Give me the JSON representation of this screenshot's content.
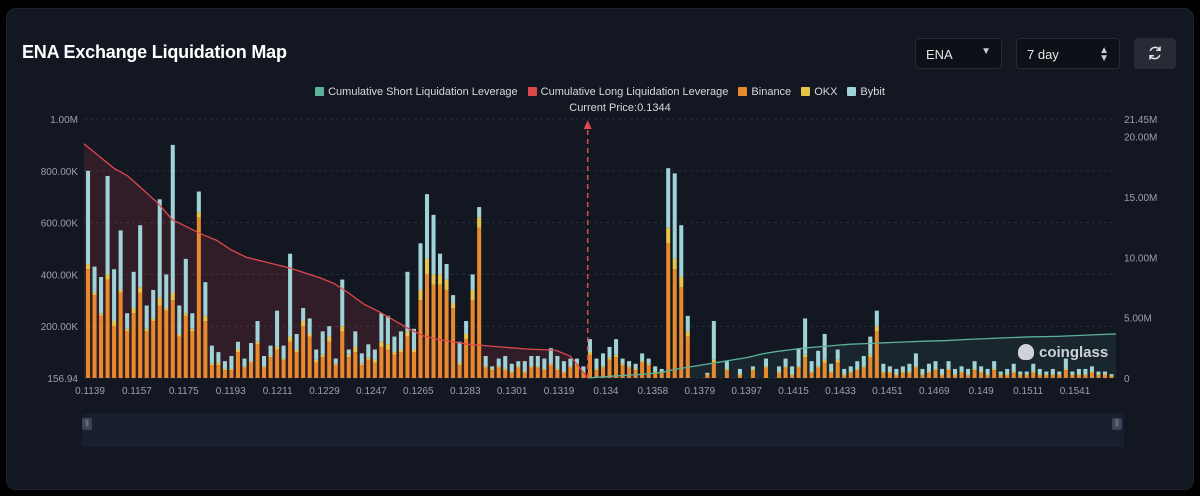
{
  "header": {
    "title": "ENA Exchange Liquidation Map",
    "coin_select": "ENA",
    "period_select": "7 day"
  },
  "colors": {
    "short_cum": "#5bb39a",
    "long_cum": "#e0474c",
    "binance": "#e8892c",
    "okx": "#e9c44a",
    "bybit": "#9fd3d8"
  },
  "chart_data": {
    "type": "bar",
    "legend": [
      {
        "name": "Cumulative Short Liquidation Leverage",
        "color": "#5bb39a"
      },
      {
        "name": "Cumulative Long Liquidation Leverage",
        "color": "#e0474c"
      },
      {
        "name": "Binance",
        "color": "#e8892c"
      },
      {
        "name": "OKX",
        "color": "#e9c44a"
      },
      {
        "name": "Bybit",
        "color": "#9fd3d8"
      }
    ],
    "current_price_label": "Current Price:0.1344",
    "current_price": 0.1344,
    "x_start": 0.1139,
    "x_step": 0.0003,
    "x_tick_labels": [
      "0.1139",
      "0.1157",
      "0.1175",
      "0.1193",
      "0.1211",
      "0.1229",
      "0.1247",
      "0.1265",
      "0.1283",
      "0.1301",
      "0.1319",
      "0.134",
      "0.1358",
      "0.1379",
      "0.1397",
      "0.1415",
      "0.1433",
      "0.1451",
      "0.1469",
      "0.149",
      "0.1511",
      "0.1541"
    ],
    "y_left_ticks": [
      "156.94",
      "200.00K",
      "400.00K",
      "600.00K",
      "800.00K",
      "1.00M"
    ],
    "y_left_max": 1000000,
    "y_right_ticks": [
      "0",
      "5.00M",
      "10.00M",
      "15.00M",
      "20.00M",
      "21.45M"
    ],
    "y_right_max": 21450000,
    "series": [
      {
        "name": "Binance",
        "values": [
          420000,
          320000,
          240000,
          380000,
          200000,
          330000,
          180000,
          250000,
          330000,
          180000,
          220000,
          280000,
          260000,
          300000,
          160000,
          240000,
          180000,
          620000,
          220000,
          50000,
          50000,
          30000,
          30000,
          100000,
          40000,
          60000,
          130000,
          40000,
          80000,
          110000,
          70000,
          140000,
          100000,
          200000,
          160000,
          60000,
          80000,
          140000,
          50000,
          180000,
          80000,
          100000,
          50000,
          70000,
          60000,
          120000,
          110000,
          90000,
          100000,
          160000,
          100000,
          300000,
          400000,
          360000,
          360000,
          340000,
          270000,
          50000,
          150000,
          300000,
          580000,
          40000,
          30000,
          40000,
          30000,
          20000,
          40000,
          20000,
          40000,
          40000,
          30000,
          50000,
          30000,
          20000,
          40000,
          50000,
          20000,
          90000,
          30000,
          40000,
          70000,
          80000,
          50000,
          40000,
          30000,
          60000,
          50000,
          20000,
          20000,
          520000,
          420000,
          350000,
          160000,
          0,
          0,
          10000,
          60000,
          0,
          30000,
          0,
          10000,
          0,
          30000,
          0,
          40000,
          0,
          20000,
          40000,
          10000,
          40000,
          80000,
          20000,
          40000,
          60000,
          20000,
          60000,
          10000,
          20000,
          30000,
          40000,
          80000,
          180000,
          20000,
          20000,
          10000,
          20000,
          20000,
          40000,
          10000,
          20000,
          30000,
          10000,
          30000,
          10000,
          20000,
          10000,
          30000,
          20000,
          10000,
          30000,
          10000,
          10000,
          20000,
          10000,
          10000,
          20000,
          10000,
          10000,
          10000,
          10000,
          30000,
          10000,
          10000,
          10000,
          20000,
          10000,
          10000,
          5000
        ]
      },
      {
        "name": "OKX",
        "values": [
          20000,
          10000,
          10000,
          20000,
          20000,
          10000,
          10000,
          20000,
          20000,
          10000,
          10000,
          30000,
          10000,
          30000,
          10000,
          10000,
          10000,
          20000,
          20000,
          5000,
          10000,
          5000,
          5000,
          10000,
          5000,
          5000,
          10000,
          5000,
          5000,
          10000,
          5000,
          20000,
          10000,
          20000,
          10000,
          10000,
          10000,
          20000,
          5000,
          20000,
          10000,
          20000,
          5000,
          10000,
          10000,
          20000,
          20000,
          10000,
          10000,
          20000,
          10000,
          40000,
          60000,
          40000,
          40000,
          40000,
          20000,
          10000,
          20000,
          40000,
          40000,
          5000,
          5000,
          5000,
          5000,
          5000,
          5000,
          5000,
          5000,
          5000,
          5000,
          5000,
          5000,
          5000,
          5000,
          5000,
          5000,
          10000,
          5000,
          5000,
          10000,
          10000,
          5000,
          5000,
          5000,
          5000,
          5000,
          5000,
          5000,
          60000,
          40000,
          40000,
          20000,
          0,
          0,
          5000,
          10000,
          0,
          5000,
          0,
          5000,
          0,
          5000,
          0,
          5000,
          0,
          5000,
          5000,
          5000,
          5000,
          10000,
          5000,
          5000,
          10000,
          5000,
          10000,
          5000,
          5000,
          5000,
          5000,
          10000,
          20000,
          5000,
          5000,
          5000,
          5000,
          5000,
          5000,
          5000,
          5000,
          5000,
          5000,
          5000,
          5000,
          5000,
          5000,
          5000,
          5000,
          5000,
          5000,
          5000,
          5000,
          5000,
          5000,
          5000,
          5000,
          5000,
          5000,
          5000,
          5000,
          5000,
          5000,
          5000,
          5000,
          5000,
          5000,
          5000,
          5000
        ]
      },
      {
        "name": "Bybit",
        "values": [
          360000,
          100000,
          140000,
          380000,
          200000,
          230000,
          60000,
          140000,
          240000,
          90000,
          110000,
          380000,
          130000,
          570000,
          110000,
          210000,
          60000,
          80000,
          130000,
          70000,
          40000,
          30000,
          50000,
          30000,
          30000,
          70000,
          80000,
          40000,
          40000,
          140000,
          50000,
          320000,
          60000,
          50000,
          60000,
          40000,
          90000,
          40000,
          20000,
          180000,
          20000,
          60000,
          40000,
          50000,
          40000,
          110000,
          110000,
          60000,
          70000,
          230000,
          80000,
          180000,
          250000,
          230000,
          80000,
          60000,
          30000,
          80000,
          50000,
          60000,
          40000,
          40000,
          10000,
          30000,
          50000,
          30000,
          20000,
          40000,
          40000,
          40000,
          40000,
          60000,
          50000,
          40000,
          30000,
          20000,
          20000,
          50000,
          40000,
          50000,
          40000,
          60000,
          20000,
          20000,
          20000,
          30000,
          20000,
          20000,
          10000,
          230000,
          330000,
          200000,
          60000,
          0,
          0,
          5000,
          150000,
          0,
          30000,
          0,
          20000,
          0,
          10000,
          0,
          30000,
          0,
          20000,
          30000,
          30000,
          70000,
          140000,
          40000,
          60000,
          100000,
          30000,
          40000,
          20000,
          20000,
          30000,
          40000,
          70000,
          60000,
          30000,
          20000,
          20000,
          20000,
          30000,
          50000,
          20000,
          30000,
          30000,
          20000,
          30000,
          20000,
          20000,
          20000,
          30000,
          20000,
          20000,
          30000,
          10000,
          20000,
          30000,
          10000,
          10000,
          30000,
          20000,
          10000,
          20000,
          10000,
          40000,
          10000,
          20000,
          20000,
          20000,
          10000,
          10000,
          5000
        ]
      },
      {
        "name": "Cumulative Long Liquidation Leverage",
        "x": [
          0.1139,
          0.1145,
          0.1151,
          0.1157,
          0.1163,
          0.1169,
          0.1175,
          0.1181,
          0.1187,
          0.1193,
          0.1199,
          0.1205,
          0.1211,
          0.1217,
          0.1223,
          0.1229,
          0.1235,
          0.1241,
          0.1247,
          0.1253,
          0.1259,
          0.1265,
          0.1271,
          0.1277,
          0.1283,
          0.1289,
          0.1295,
          0.1301,
          0.1307,
          0.1313,
          0.1319,
          0.1325,
          0.1331,
          0.1337,
          0.1344
        ],
        "values": [
          19400000,
          18400000,
          17400000,
          16700000,
          15600000,
          14500000,
          13100000,
          12500000,
          11900000,
          11400000,
          10600000,
          10000000,
          9700000,
          9400000,
          9100000,
          8700000,
          8300000,
          7800000,
          7000000,
          6100000,
          5500000,
          4800000,
          4100000,
          3500000,
          3200000,
          3000000,
          2800000,
          2700000,
          2600000,
          2500000,
          2400000,
          2350000,
          2300000,
          1800000,
          0
        ]
      },
      {
        "name": "Cumulative Short Liquidation Leverage",
        "x": [
          0.1344,
          0.135,
          0.1358,
          0.1366,
          0.1374,
          0.1379,
          0.1385,
          0.1391,
          0.1397,
          0.1403,
          0.1409,
          0.1415,
          0.1421,
          0.1427,
          0.1433,
          0.1439,
          0.1445,
          0.1451,
          0.1457,
          0.1463,
          0.1469,
          0.1475,
          0.1481,
          0.149,
          0.1499,
          0.1511,
          0.1523,
          0.1535,
          0.1541,
          0.1553,
          0.1559
        ],
        "values": [
          0,
          100000,
          200000,
          300000,
          450000,
          700000,
          900000,
          1100000,
          1300000,
          1500000,
          1700000,
          2000000,
          2200000,
          2350000,
          2500000,
          2600000,
          2700000,
          2800000,
          2850000,
          2900000,
          2950000,
          3000000,
          3050000,
          3100000,
          3200000,
          3300000,
          3400000,
          3450000,
          3500000,
          3600000,
          3650000
        ]
      }
    ]
  },
  "watermark": "coinglass"
}
